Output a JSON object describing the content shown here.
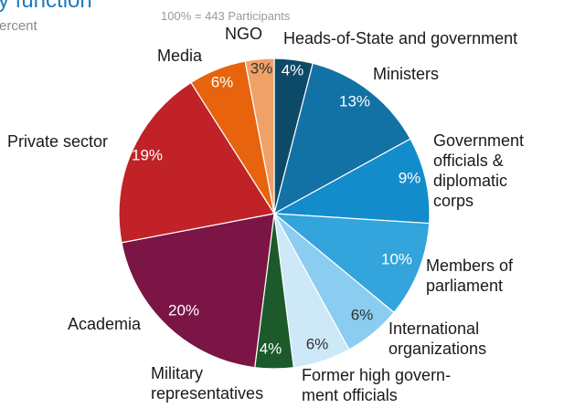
{
  "header": {
    "title": "y function",
    "subtitle": "ercent",
    "note": "100% = 443 Participants"
  },
  "chart_data": {
    "type": "pie",
    "categories": [
      "Heads-of-State and government",
      "Ministers",
      "Government officials & diplomatic corps",
      "Members of parliament",
      "International organizations",
      "Former high govern-ment officials",
      "Military representatives",
      "Academia",
      "Private sector",
      "Media",
      "NGO"
    ],
    "values": [
      4,
      13,
      9,
      10,
      6,
      6,
      4,
      20,
      19,
      6,
      3
    ],
    "value_labels": [
      "4%",
      "13%",
      "9%",
      "10%",
      "6%",
      "6%",
      "4%",
      "20%",
      "19%",
      "6%",
      "3%"
    ],
    "colors": [
      "#0c4a68",
      "#1271a5",
      "#138ccc",
      "#33a4dc",
      "#8bcdf0",
      "#cde8f7",
      "#1c5a2c",
      "#7a1545",
      "#c02228",
      "#e8630e",
      "#f0a167"
    ],
    "value_label_colors": [
      "#ffffff",
      "#ffffff",
      "#ffffff",
      "#ffffff",
      "#333333",
      "#333333",
      "#ffffff",
      "#ffffff",
      "#ffffff",
      "#ffffff",
      "#333333"
    ],
    "category_lines": [
      [
        "Heads-of-State and government"
      ],
      [
        "Ministers"
      ],
      [
        "Government",
        "officials &",
        "diplomatic",
        "corps"
      ],
      [
        "Members of",
        "parliament"
      ],
      [
        "International",
        "organizations"
      ],
      [
        "Former high govern-",
        "ment officials"
      ],
      [
        "Military",
        "representatives"
      ],
      [
        "Academia"
      ],
      [
        "Private sector"
      ],
      [
        "Media"
      ],
      [
        "NGO"
      ]
    ]
  }
}
